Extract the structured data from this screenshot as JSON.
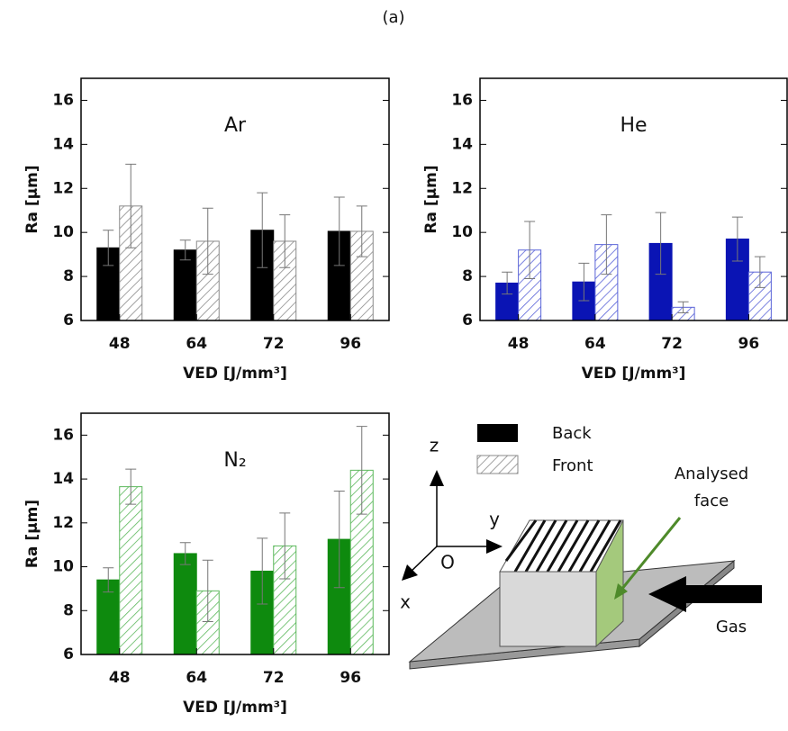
{
  "panel_label": "(a)",
  "chart_data": [
    {
      "type": "bar",
      "title": "Ar",
      "xlabel": "VED [J/mm³]",
      "ylabel": "Ra [μm]",
      "categories": [
        "48",
        "64",
        "72",
        "96"
      ],
      "series": [
        {
          "name": "Back",
          "color": "#000000",
          "hatch": false,
          "values": [
            9.3,
            9.2,
            10.1,
            10.05
          ],
          "errors": [
            0.8,
            0.45,
            1.7,
            1.55
          ]
        },
        {
          "name": "Front",
          "color": "#8a8a8a",
          "hatch": true,
          "values": [
            11.2,
            9.6,
            9.6,
            10.05
          ],
          "errors": [
            1.9,
            1.5,
            1.2,
            1.15
          ]
        }
      ],
      "ylim": [
        6,
        17
      ],
      "yticks": [
        6,
        8,
        10,
        12,
        14,
        16
      ]
    },
    {
      "type": "bar",
      "title": "He",
      "xlabel": "VED [J/mm³]",
      "ylabel": "Ra [μm]",
      "categories": [
        "48",
        "64",
        "72",
        "96"
      ],
      "series": [
        {
          "name": "Back",
          "color": "#0a14b4",
          "hatch": false,
          "values": [
            7.7,
            7.75,
            9.5,
            9.7
          ],
          "errors": [
            0.5,
            0.85,
            1.4,
            1.0
          ]
        },
        {
          "name": "Front",
          "color": "#5a64d8",
          "hatch": true,
          "values": [
            9.2,
            9.45,
            6.6,
            8.2
          ],
          "errors": [
            1.3,
            1.35,
            0.25,
            0.7
          ]
        }
      ],
      "ylim": [
        6,
        17
      ],
      "yticks": [
        6,
        8,
        10,
        12,
        14,
        16
      ]
    },
    {
      "type": "bar",
      "title": "N₂",
      "xlabel": "VED [J/mm³]",
      "ylabel": "Ra [μm]",
      "categories": [
        "48",
        "64",
        "72",
        "96"
      ],
      "series": [
        {
          "name": "Back",
          "color": "#0e8a0e",
          "hatch": false,
          "values": [
            9.4,
            10.6,
            9.8,
            11.25
          ],
          "errors": [
            0.55,
            0.5,
            1.5,
            2.2
          ]
        },
        {
          "name": "Front",
          "color": "#5cb85c",
          "hatch": true,
          "values": [
            13.65,
            8.9,
            10.95,
            14.4
          ],
          "errors": [
            0.8,
            1.4,
            1.5,
            2.0
          ]
        }
      ],
      "ylim": [
        6,
        17
      ],
      "yticks": [
        6,
        8,
        10,
        12,
        14,
        16
      ]
    }
  ],
  "diagram": {
    "axis_z": "z",
    "axis_y": "y",
    "axis_x": "x",
    "origin": "O",
    "analysed_face": [
      "Analysed",
      "face"
    ],
    "gas": "Gas"
  }
}
